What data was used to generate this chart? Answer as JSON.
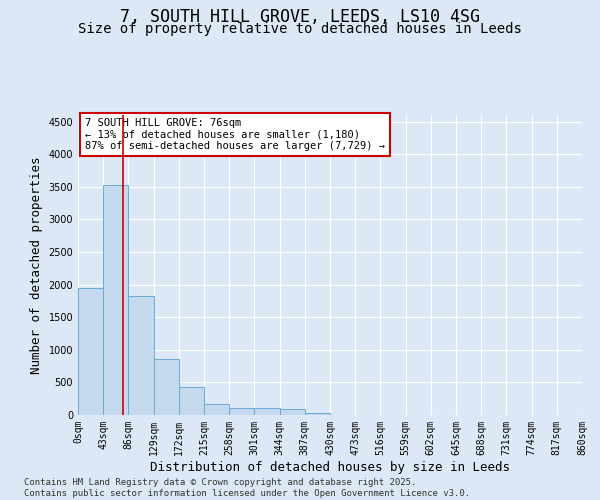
{
  "title_line1": "7, SOUTH HILL GROVE, LEEDS, LS10 4SG",
  "title_line2": "Size of property relative to detached houses in Leeds",
  "xlabel": "Distribution of detached houses by size in Leeds",
  "ylabel": "Number of detached properties",
  "bar_edges": [
    0,
    43,
    86,
    129,
    172,
    215,
    258,
    301,
    344,
    387,
    430,
    473,
    516,
    559,
    602,
    645,
    688,
    731,
    774,
    817,
    860
  ],
  "bar_heights": [
    1940,
    3520,
    1830,
    860,
    430,
    170,
    105,
    100,
    85,
    30,
    0,
    0,
    0,
    0,
    0,
    0,
    0,
    0,
    0,
    0
  ],
  "bar_color": "#c5d9ee",
  "bar_edgecolor": "#6aaad4",
  "vline_x": 76,
  "vline_color": "#cc0000",
  "annotation_text": "7 SOUTH HILL GROVE: 76sqm\n← 13% of detached houses are smaller (1,180)\n87% of semi-detached houses are larger (7,729) →",
  "annotation_box_edgecolor": "#cc0000",
  "annotation_box_facecolor": "#ffffff",
  "ylim": [
    0,
    4600
  ],
  "yticks": [
    0,
    500,
    1000,
    1500,
    2000,
    2500,
    3000,
    3500,
    4000,
    4500
  ],
  "xlim": [
    0,
    860
  ],
  "background_color": "#dce8f5",
  "plot_background": "#dce8f5",
  "grid_color": "#ffffff",
  "footer_text": "Contains HM Land Registry data © Crown copyright and database right 2025.\nContains public sector information licensed under the Open Government Licence v3.0.",
  "title_fontsize": 12,
  "subtitle_fontsize": 10,
  "tick_label_fontsize": 7,
  "axis_label_fontsize": 9,
  "footer_fontsize": 6.5,
  "ann_fontsize": 7.5
}
